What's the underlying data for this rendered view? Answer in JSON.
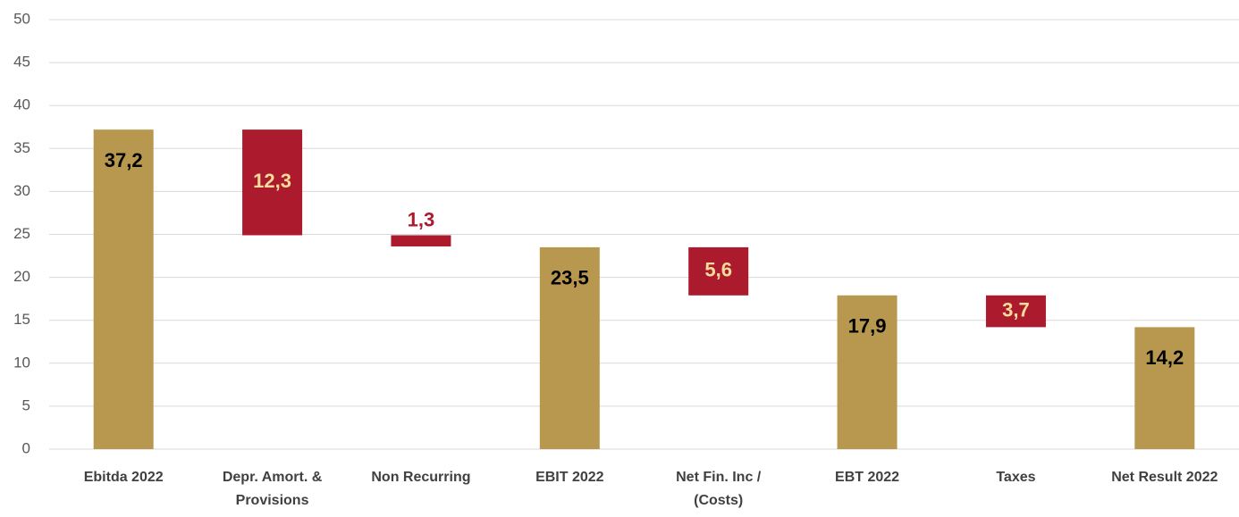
{
  "chart_data": {
    "type": "waterfall",
    "categories": [
      [
        "Ebitda 2022"
      ],
      [
        "Depr. Amort. &",
        "Provisions"
      ],
      [
        "Non Recurring"
      ],
      [
        "EBIT 2022"
      ],
      [
        "Net Fin. Inc /",
        "(Costs)"
      ],
      [
        "EBT 2022"
      ],
      [
        "Taxes"
      ],
      [
        "Net Result 2022"
      ]
    ],
    "values": [
      37.2,
      -12.3,
      -1.3,
      23.5,
      -5.6,
      17.9,
      -3.7,
      14.2
    ],
    "value_labels": [
      "37,2",
      "12,3",
      "1,3",
      "23,5",
      "5,6",
      "17,9",
      "3,7",
      "14,2"
    ],
    "total_color": "#b8984e",
    "decrease_color": "#ab1a2d",
    "ylim": [
      0,
      50
    ],
    "yticks": [
      0,
      5,
      10,
      15,
      20,
      25,
      30,
      35,
      40,
      45,
      50
    ],
    "grid": true
  }
}
